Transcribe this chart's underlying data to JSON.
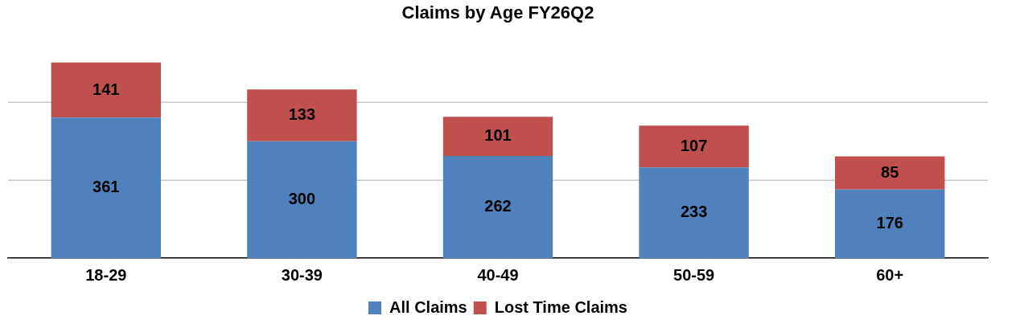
{
  "chart_data": {
    "type": "bar",
    "title": "Claims by Age FY26Q2",
    "stacked": true,
    "categories": [
      "18-29",
      "30-39",
      "40-49",
      "50-59",
      "60+"
    ],
    "series": [
      {
        "name": "All Claims",
        "color": "#4f81bd",
        "values": [
          361,
          300,
          262,
          233,
          176
        ]
      },
      {
        "name": "Lost Time Claims",
        "color": "#c0504d",
        "values": [
          141,
          133,
          101,
          107,
          85
        ]
      }
    ],
    "ref_lines": [
      {
        "axis": "y",
        "value": 200,
        "color": "#c8c8c8"
      },
      {
        "axis": "y",
        "value": 400,
        "color": "#c8c8c8"
      }
    ],
    "tick_labels": "x",
    "legend": "bottom",
    "data_labels": true
  }
}
